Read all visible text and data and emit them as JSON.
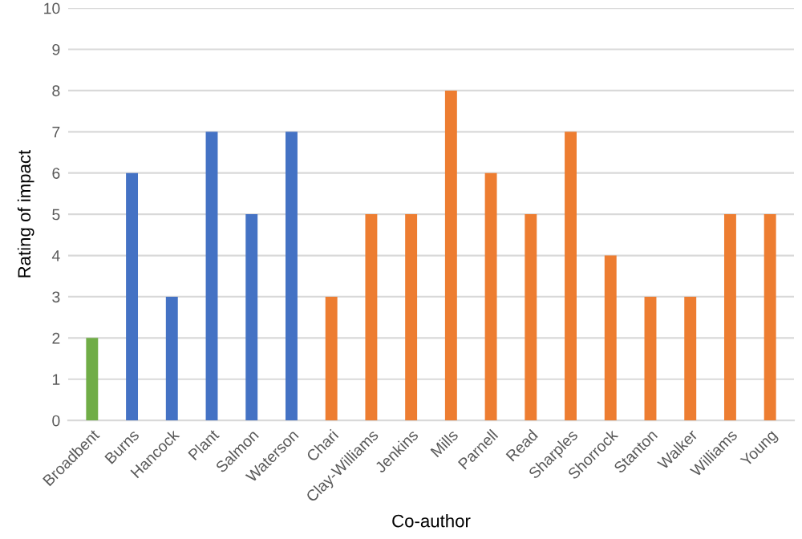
{
  "chart_data": {
    "type": "bar",
    "xlabel": "Co-author",
    "ylabel": "Rating of impact",
    "categories": [
      "Broadbent",
      "Burns",
      "Hancock",
      "Plant",
      "Salmon",
      "Waterson",
      "Chari",
      "Clay-Williams",
      "Jenkins",
      "Mills",
      "Parnell",
      "Read",
      "Sharples",
      "Shorrock",
      "Stanton",
      "Walker",
      "Williams",
      "Young"
    ],
    "values": [
      2,
      6,
      3,
      7,
      5,
      7,
      3,
      5,
      5,
      8,
      6,
      5,
      7,
      4,
      3,
      3,
      5,
      5
    ],
    "colors": [
      "#70ad47",
      "#4472c4",
      "#4472c4",
      "#4472c4",
      "#4472c4",
      "#4472c4",
      "#ed7d31",
      "#ed7d31",
      "#ed7d31",
      "#ed7d31",
      "#ed7d31",
      "#ed7d31",
      "#ed7d31",
      "#ed7d31",
      "#ed7d31",
      "#ed7d31",
      "#ed7d31",
      "#ed7d31"
    ],
    "ylim": [
      0,
      10
    ],
    "yticks": [
      0,
      1,
      2,
      3,
      4,
      5,
      6,
      7,
      8,
      9,
      10
    ],
    "grid": "y"
  }
}
